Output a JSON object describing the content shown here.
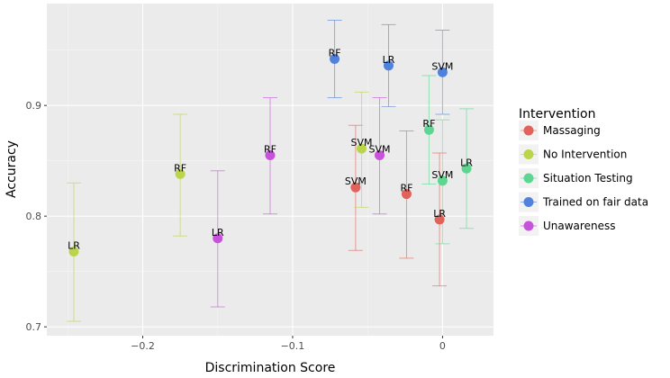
{
  "chart_data": {
    "type": "scatter",
    "xlabel": "Discrimination Score",
    "ylabel": "Accuracy",
    "xlim": [
      -0.264,
      0.034
    ],
    "ylim": [
      0.692,
      0.992
    ],
    "x_ticks": [
      -0.2,
      -0.1,
      0
    ],
    "x_tick_labels": [
      "−0.2",
      "−0.1",
      "0"
    ],
    "y_ticks": [
      0.7,
      0.8,
      0.9
    ],
    "y_tick_labels": [
      "0.7",
      "0.8",
      "0.9"
    ],
    "grid": true,
    "legend": {
      "title": "Intervention",
      "position": "right"
    },
    "series": [
      {
        "name": "Massaging",
        "color": "#E0625A",
        "points": [
          {
            "label": "SVM",
            "x": -0.058,
            "y": 0.826,
            "err_low": 0.769,
            "err_high": 0.882
          },
          {
            "label": "RF",
            "x": -0.024,
            "y": 0.82,
            "err_low": 0.762,
            "err_high": 0.877
          },
          {
            "label": "LR",
            "x": -0.002,
            "y": 0.797,
            "err_low": 0.737,
            "err_high": 0.857
          }
        ]
      },
      {
        "name": "No Intervention",
        "color": "#BBD54A",
        "points": [
          {
            "label": "LR",
            "x": -0.246,
            "y": 0.768,
            "err_low": 0.705,
            "err_high": 0.83
          },
          {
            "label": "RF",
            "x": -0.175,
            "y": 0.838,
            "err_low": 0.782,
            "err_high": 0.892
          },
          {
            "label": "SVM",
            "x": -0.054,
            "y": 0.861,
            "err_low": 0.808,
            "err_high": 0.912
          }
        ]
      },
      {
        "name": "Situation Testing",
        "color": "#5DD691",
        "points": [
          {
            "label": "RF",
            "x": -0.009,
            "y": 0.878,
            "err_low": 0.829,
            "err_high": 0.927
          },
          {
            "label": "SVM",
            "x": 0.0,
            "y": 0.832,
            "err_low": 0.775,
            "err_high": 0.887
          },
          {
            "label": "LR",
            "x": 0.016,
            "y": 0.843,
            "err_low": 0.789,
            "err_high": 0.897
          }
        ]
      },
      {
        "name": "Trained on fair data",
        "color": "#5082DC",
        "points": [
          {
            "label": "RF",
            "x": -0.072,
            "y": 0.942,
            "err_low": 0.907,
            "err_high": 0.977
          },
          {
            "label": "LR",
            "x": -0.036,
            "y": 0.936,
            "err_low": 0.899,
            "err_high": 0.973
          },
          {
            "label": "SVM",
            "x": 0.0,
            "y": 0.93,
            "err_low": 0.892,
            "err_high": 0.968
          }
        ]
      },
      {
        "name": "Unawareness",
        "color": "#C653DA",
        "points": [
          {
            "label": "LR",
            "x": -0.15,
            "y": 0.78,
            "err_low": 0.718,
            "err_high": 0.841
          },
          {
            "label": "RF",
            "x": -0.115,
            "y": 0.855,
            "err_low": 0.802,
            "err_high": 0.907
          },
          {
            "label": "SVM",
            "x": -0.042,
            "y": 0.855,
            "err_low": 0.802,
            "err_high": 0.907
          }
        ]
      }
    ]
  }
}
